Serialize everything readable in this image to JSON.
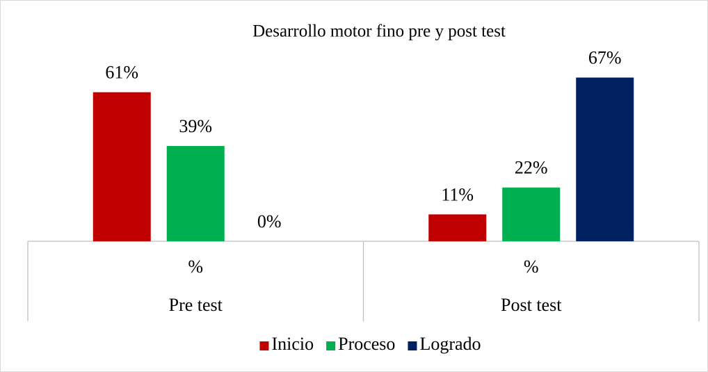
{
  "chart_data": {
    "type": "bar",
    "title": "Desarrollo motor fino pre y post test",
    "categories": [
      "%",
      "%"
    ],
    "category_groups": [
      "Pre test",
      "Post test"
    ],
    "series": [
      {
        "name": "Inicio",
        "color": "#c00000",
        "values": [
          61,
          11
        ],
        "value_labels": [
          "61%",
          "11%"
        ]
      },
      {
        "name": "Proceso",
        "color": "#00b050",
        "values": [
          39,
          22
        ],
        "value_labels": [
          "39%",
          "22%"
        ]
      },
      {
        "name": "Logrado",
        "color": "#002060",
        "values": [
          0,
          67
        ],
        "value_labels": [
          "0%",
          "67%"
        ]
      }
    ],
    "ylim": [
      0,
      70
    ],
    "legend": "bottom"
  }
}
